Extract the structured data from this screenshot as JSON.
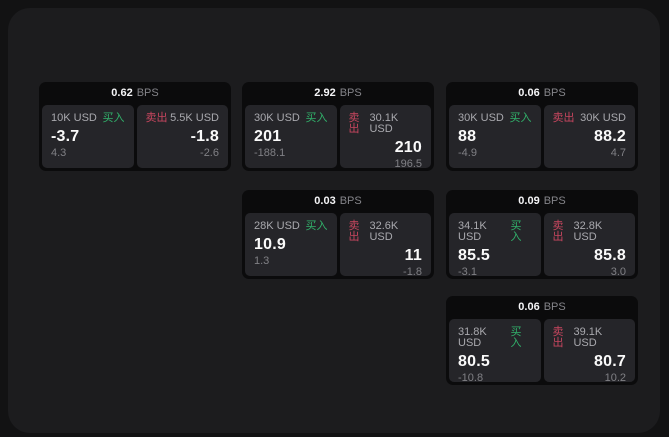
{
  "labels": {
    "bps_unit": "BPS",
    "buy": "买入",
    "sell": "卖出"
  },
  "colors": {
    "buy-color": "#31b26b",
    "sell-color": "#c8465f",
    "card-bg": "#0b0b0c",
    "panel-bg": "#252529",
    "window-bg": "#1c1c1e"
  },
  "cards": [
    {
      "bps": "0.62",
      "buy": {
        "amount": "10K USD",
        "value": "-3.7",
        "sub": "4.3"
      },
      "sell": {
        "amount": "5.5K USD",
        "value": "-1.8",
        "sub": "-2.6"
      }
    },
    {
      "bps": "2.92",
      "buy": {
        "amount": "30K USD",
        "value": "201",
        "sub": "-188.1"
      },
      "sell": {
        "amount": "30.1K USD",
        "value": "210",
        "sub": "196.5"
      }
    },
    {
      "bps": "0.06",
      "buy": {
        "amount": "30K USD",
        "value": "88",
        "sub": "-4.9"
      },
      "sell": {
        "amount": "30K USD",
        "value": "88.2",
        "sub": "4.7"
      }
    },
    {
      "bps": "0.03",
      "buy": {
        "amount": "28K USD",
        "value": "10.9",
        "sub": "1.3"
      },
      "sell": {
        "amount": "32.6K USD",
        "value": "11",
        "sub": "-1.8"
      }
    },
    {
      "bps": "0.09",
      "buy": {
        "amount": "34.1K USD",
        "value": "85.5",
        "sub": "-3.1"
      },
      "sell": {
        "amount": "32.8K USD",
        "value": "85.8",
        "sub": "3.0"
      }
    },
    {
      "bps": "0.06",
      "buy": {
        "amount": "31.8K USD",
        "value": "80.5",
        "sub": "-10.8"
      },
      "sell": {
        "amount": "39.1K USD",
        "value": "80.7",
        "sub": "10.2"
      }
    }
  ]
}
